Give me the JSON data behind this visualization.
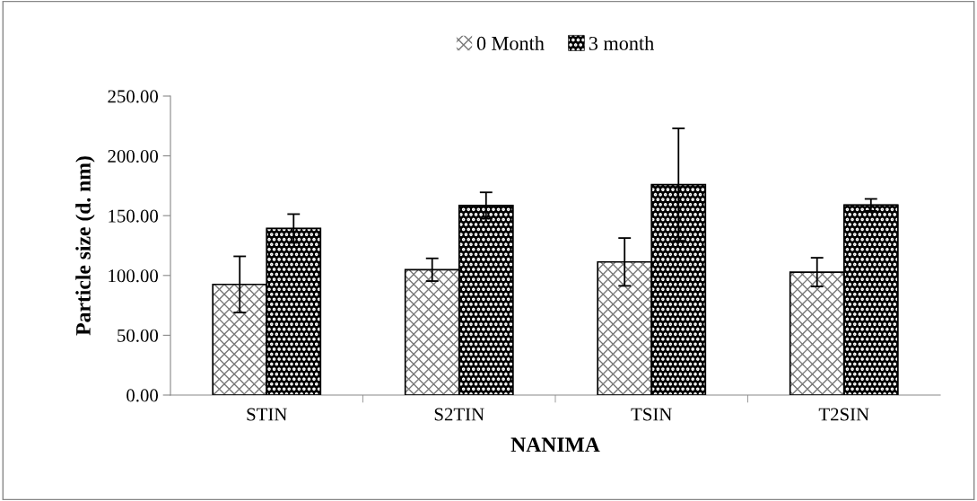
{
  "chart_data": {
    "type": "bar",
    "xlabel": "NANIMA",
    "ylabel": "Particle size (d. nm)",
    "categories": [
      "STIN",
      "S2TIN",
      "TSIN",
      "T2SIN"
    ],
    "series": [
      {
        "name": "0 Month",
        "color": "#ffffff",
        "values": [
          92.5,
          104.8,
          111.3,
          102.8
        ],
        "errors": [
          23.5,
          9.5,
          20,
          12
        ]
      },
      {
        "name": "3 month",
        "color": "#000000",
        "values": [
          139.3,
          158.5,
          176,
          159
        ],
        "errors": [
          12,
          11,
          47,
          5
        ]
      }
    ],
    "ylim": [
      0,
      250
    ],
    "yticks": [
      {
        "value": 0,
        "label": "0.00"
      },
      {
        "value": 50,
        "label": "50.00"
      },
      {
        "value": 100,
        "label": "100.00"
      },
      {
        "value": 150,
        "label": "150.00"
      },
      {
        "value": 200,
        "label": "200.00"
      },
      {
        "value": 250,
        "label": "250.00"
      }
    ],
    "grid": false,
    "legend": "top"
  }
}
